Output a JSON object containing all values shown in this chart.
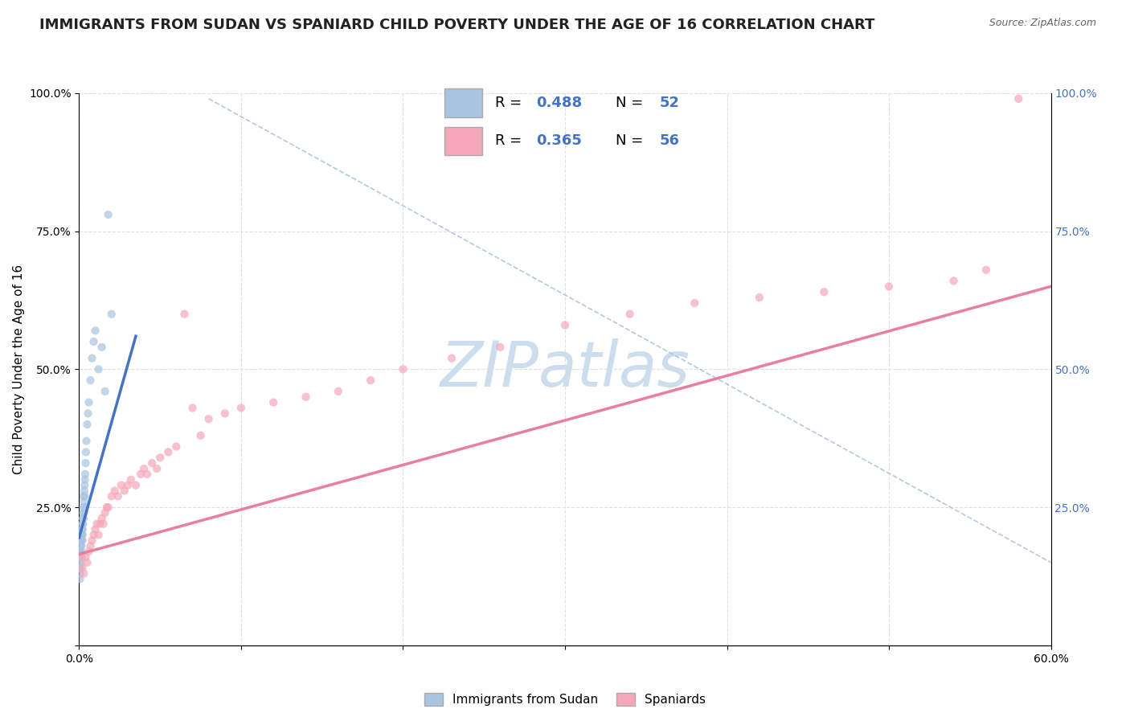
{
  "title": "IMMIGRANTS FROM SUDAN VS SPANIARD CHILD POVERTY UNDER THE AGE OF 16 CORRELATION CHART",
  "source": "Source: ZipAtlas.com",
  "ylabel": "Child Poverty Under the Age of 16",
  "xlim": [
    0,
    0.6
  ],
  "ylim": [
    0,
    1.0
  ],
  "xticks": [
    0.0,
    0.1,
    0.2,
    0.3,
    0.4,
    0.5,
    0.6
  ],
  "xticklabels": [
    "0.0%",
    "",
    "",
    "",
    "",
    "",
    "60.0%"
  ],
  "yticks": [
    0.0,
    0.25,
    0.5,
    0.75,
    1.0
  ],
  "yticklabels_left": [
    "",
    "25.0%",
    "50.0%",
    "75.0%",
    "100.0%"
  ],
  "yticklabels_right": [
    "",
    "25.0%",
    "50.0%",
    "75.0%",
    "100.0%"
  ],
  "R_color": "#4472c4",
  "watermark_text": "ZIPatlas",
  "watermark_color": "#ccdded",
  "sudan_scatter_x": [
    0.0002,
    0.0003,
    0.0004,
    0.0005,
    0.0005,
    0.0006,
    0.0007,
    0.0008,
    0.0009,
    0.001,
    0.001,
    0.0012,
    0.0013,
    0.0014,
    0.0015,
    0.0015,
    0.0016,
    0.0017,
    0.0018,
    0.002,
    0.002,
    0.0021,
    0.0022,
    0.0023,
    0.0024,
    0.0025,
    0.0026,
    0.0027,
    0.0028,
    0.003,
    0.003,
    0.0032,
    0.0033,
    0.0034,
    0.0035,
    0.0036,
    0.0038,
    0.004,
    0.0042,
    0.0045,
    0.005,
    0.0055,
    0.006,
    0.007,
    0.008,
    0.009,
    0.01,
    0.012,
    0.014,
    0.016,
    0.018,
    0.02
  ],
  "sudan_scatter_y": [
    0.15,
    0.14,
    0.13,
    0.17,
    0.12,
    0.14,
    0.17,
    0.16,
    0.15,
    0.18,
    0.16,
    0.17,
    0.19,
    0.2,
    0.18,
    0.16,
    0.19,
    0.21,
    0.2,
    0.22,
    0.19,
    0.2,
    0.21,
    0.23,
    0.22,
    0.24,
    0.25,
    0.23,
    0.27,
    0.26,
    0.24,
    0.28,
    0.25,
    0.29,
    0.27,
    0.3,
    0.31,
    0.33,
    0.35,
    0.37,
    0.4,
    0.42,
    0.44,
    0.48,
    0.52,
    0.55,
    0.57,
    0.5,
    0.54,
    0.46,
    0.78,
    0.6
  ],
  "spaniards_scatter_x": [
    0.001,
    0.002,
    0.003,
    0.004,
    0.005,
    0.006,
    0.007,
    0.008,
    0.009,
    0.01,
    0.011,
    0.012,
    0.013,
    0.014,
    0.015,
    0.016,
    0.017,
    0.018,
    0.02,
    0.022,
    0.024,
    0.026,
    0.028,
    0.03,
    0.032,
    0.035,
    0.038,
    0.04,
    0.042,
    0.045,
    0.048,
    0.05,
    0.055,
    0.06,
    0.065,
    0.07,
    0.075,
    0.08,
    0.09,
    0.1,
    0.12,
    0.14,
    0.16,
    0.18,
    0.2,
    0.23,
    0.26,
    0.3,
    0.34,
    0.38,
    0.42,
    0.46,
    0.5,
    0.54,
    0.56,
    0.58
  ],
  "spaniards_scatter_y": [
    0.16,
    0.14,
    0.13,
    0.16,
    0.15,
    0.17,
    0.18,
    0.19,
    0.2,
    0.21,
    0.22,
    0.2,
    0.22,
    0.23,
    0.22,
    0.24,
    0.25,
    0.25,
    0.27,
    0.28,
    0.27,
    0.29,
    0.28,
    0.29,
    0.3,
    0.29,
    0.31,
    0.32,
    0.31,
    0.33,
    0.32,
    0.34,
    0.35,
    0.36,
    0.6,
    0.43,
    0.38,
    0.41,
    0.42,
    0.43,
    0.44,
    0.45,
    0.46,
    0.48,
    0.5,
    0.52,
    0.54,
    0.58,
    0.6,
    0.62,
    0.63,
    0.64,
    0.65,
    0.66,
    0.68,
    0.99
  ],
  "sudan_line_x": [
    0.0,
    0.035
  ],
  "sudan_line_y": [
    0.195,
    0.56
  ],
  "spaniards_line_x": [
    0.0,
    0.6
  ],
  "spaniards_line_y": [
    0.165,
    0.65
  ],
  "diag_line_x": [
    0.08,
    0.6
  ],
  "diag_line_y": [
    0.99,
    0.15
  ],
  "sudan_line_color": "#4472c4",
  "spaniards_line_color": "#e87fa0",
  "diag_line_color": "#aac4dd",
  "scatter_sudan_color": "#a8c4e0",
  "scatter_spaniards_color": "#f4a7b9",
  "background_color": "#ffffff",
  "grid_color": "#e0e0e0",
  "right_yaxis_color": "#4472c4",
  "title_fontsize": 13,
  "axis_label_fontsize": 11,
  "tick_fontsize": 10,
  "legend_sudan_R": "0.488",
  "legend_sudan_N": "52",
  "legend_spaniards_R": "0.365",
  "legend_spaniards_N": "56",
  "legend_sudan_color": "#a8c4e0",
  "legend_spaniards_color": "#f4a7b9",
  "legend_sudan_label": "Immigrants from Sudan",
  "legend_spaniards_label": "Spaniards"
}
